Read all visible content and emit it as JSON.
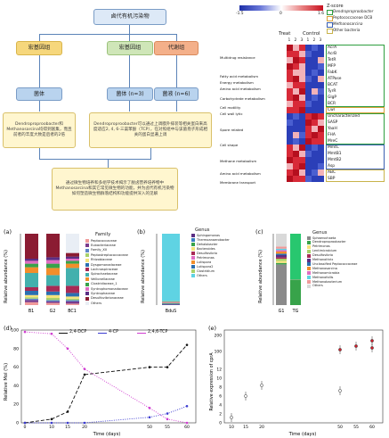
{
  "flow": {
    "top": "卤代有机污染物",
    "col1_title": "宏基因组",
    "col2_title": "宏基因组",
    "col3_title": "代谢组",
    "col1_body": "菌体",
    "col2_body": "菌体 (n=3)",
    "col3_body": "菌液 (n=6)",
    "col1_note": "Dendroproproobacter和Methanosarcina均得到富集，而且前者的丰度大致是后者的2倍",
    "col2_note": "Dendroproproobacter可以通过上调膜外排装等相关蛋白来高度适应2, 4, 6-三氯苯酚（TCP），在对照组中与该菌孢子形成相关的蛋白显著上调",
    "bottom": "通过微生物培养和多组学技术揭示了脱卤营养培养物中Methanosarcina和其它常见微生物的功能，并为卤代有机污染物如何塑造微生物群落结构和功能提供深入的见解"
  },
  "heatmap": {
    "zscore_label": "Z-score",
    "scale_ticks": [
      "-1.5",
      "0",
      "1.6"
    ],
    "legend_items": [
      {
        "label": "Dendroproproobacter",
        "color": "#2e9e3f"
      },
      {
        "label": "Peptococcaceae DCB",
        "color": "#d9a13a"
      },
      {
        "label": "Methanosarcina",
        "color": "#3a5fb0"
      },
      {
        "label": "Other bacteria",
        "color": "#c8b34a"
      }
    ],
    "group_treat": "Treat",
    "group_control": "Control",
    "replicates": [
      "1",
      "2",
      "3",
      "1",
      "2",
      "3"
    ],
    "categories": [
      {
        "label": "Multidrug resistance",
        "row": 2
      },
      {
        "label": "Fatty acid metabolism",
        "row": 5
      },
      {
        "label": "Energy metabolism",
        "row": 6
      },
      {
        "label": "Amino acid metabolism",
        "row": 7
      },
      {
        "label": "Carbohydrate metabolism",
        "row": 8.5
      },
      {
        "label": "Cell motility",
        "row": 10
      },
      {
        "label": "Cell wall lytic",
        "row": 11
      },
      {
        "label": "Spore related",
        "row": 13.5
      },
      {
        "label": "Cell shape",
        "row": 16
      },
      {
        "label": "Methane metabolism",
        "row": 18.5
      },
      {
        "label": "Amino acid metabolism",
        "row": 20.5
      },
      {
        "label": "Membrane transport",
        "row": 22
      }
    ],
    "genes": [
      "AcrA",
      "AcrB",
      "TetR",
      "MFP",
      "FabK",
      "ATPase",
      "BCAT",
      "TyrR",
      "GlgP",
      "BCR",
      "Cwl",
      "Uncharacterized",
      "SASP",
      "YaaH",
      "FHA",
      "MreC",
      "MmtC",
      "MmtB1",
      "MmtB2",
      "Asp",
      "ABC",
      "SBP"
    ]
  },
  "panel_a": {
    "letter": "(a)",
    "ylabel": "Relative abundance (%)",
    "legend_title": "Family",
    "categories": [
      "B1",
      "G2",
      "BC1"
    ],
    "families": [
      "Peptococcaceae",
      "Eubacteriaceae",
      "Family_XII",
      "Peptostreptococcaceae",
      "Rhizobiaceae",
      "Dysgomonadaceae",
      "Lachnospiraceae",
      "Spirochaetaceae",
      "Veillonellaceae",
      "Clostridiaceae_1",
      "Syntrophomonadaceae",
      "Syntrophaceae",
      "Desulfovibrionaceae",
      "Others"
    ]
  },
  "panel_b": {
    "letter": "(b)",
    "ylabel": "Relative abundance (%)",
    "legend_title": "Genus",
    "categories": [
      "BduS"
    ],
    "genera": [
      "Sphingomonas",
      "Thermoanaerobacter",
      "Dehalobacter",
      "Bacteroides",
      "Desulfovibrio",
      "Petrimonas",
      "Lutispora",
      "Lutispora2",
      "Clostridium",
      "Others"
    ]
  },
  "panel_c": {
    "letter": "(c)",
    "ylabel": "Relative abundance (%)",
    "legend_title": "Genus",
    "categories": [
      "G1",
      "TG"
    ],
    "genera": [
      "Sphaerochaeta",
      "Dendroproproobacter",
      "Petrimonas",
      "Lentimicrobium",
      "Desulfovibrio",
      "Methanothrix",
      "Unclassified Peptococcaceae",
      "Methanosarcina",
      "Methanomicrobia",
      "Methanofollis",
      "Methanobacterium",
      "Others"
    ]
  },
  "panel_d": {
    "letter": "(d)",
    "ylabel": "Relative Mol (%)",
    "xlabel": "Time (days)",
    "series": [
      {
        "name": "2,4-DCP",
        "color": "#111111"
      },
      {
        "name": "4-CP",
        "color": "#3b3bd0"
      },
      {
        "name": "2,4,6-TCP",
        "color": "#d03bd0"
      }
    ],
    "xticks": [
      "0",
      "10",
      "15",
      "20",
      "50",
      "55",
      "60"
    ],
    "yticks": [
      "0",
      "20",
      "40",
      "60",
      "80",
      "100"
    ]
  },
  "panel_e": {
    "letter": "(e)",
    "ylabel": "Relative expression of cprA",
    "xlabel": "Time (days)",
    "xticks": [
      "10",
      "15",
      "20",
      "50",
      "55",
      "60"
    ],
    "yticks": [
      "0",
      "2",
      "4",
      "6",
      "8",
      "10",
      "12",
      "100",
      "200"
    ]
  }
}
